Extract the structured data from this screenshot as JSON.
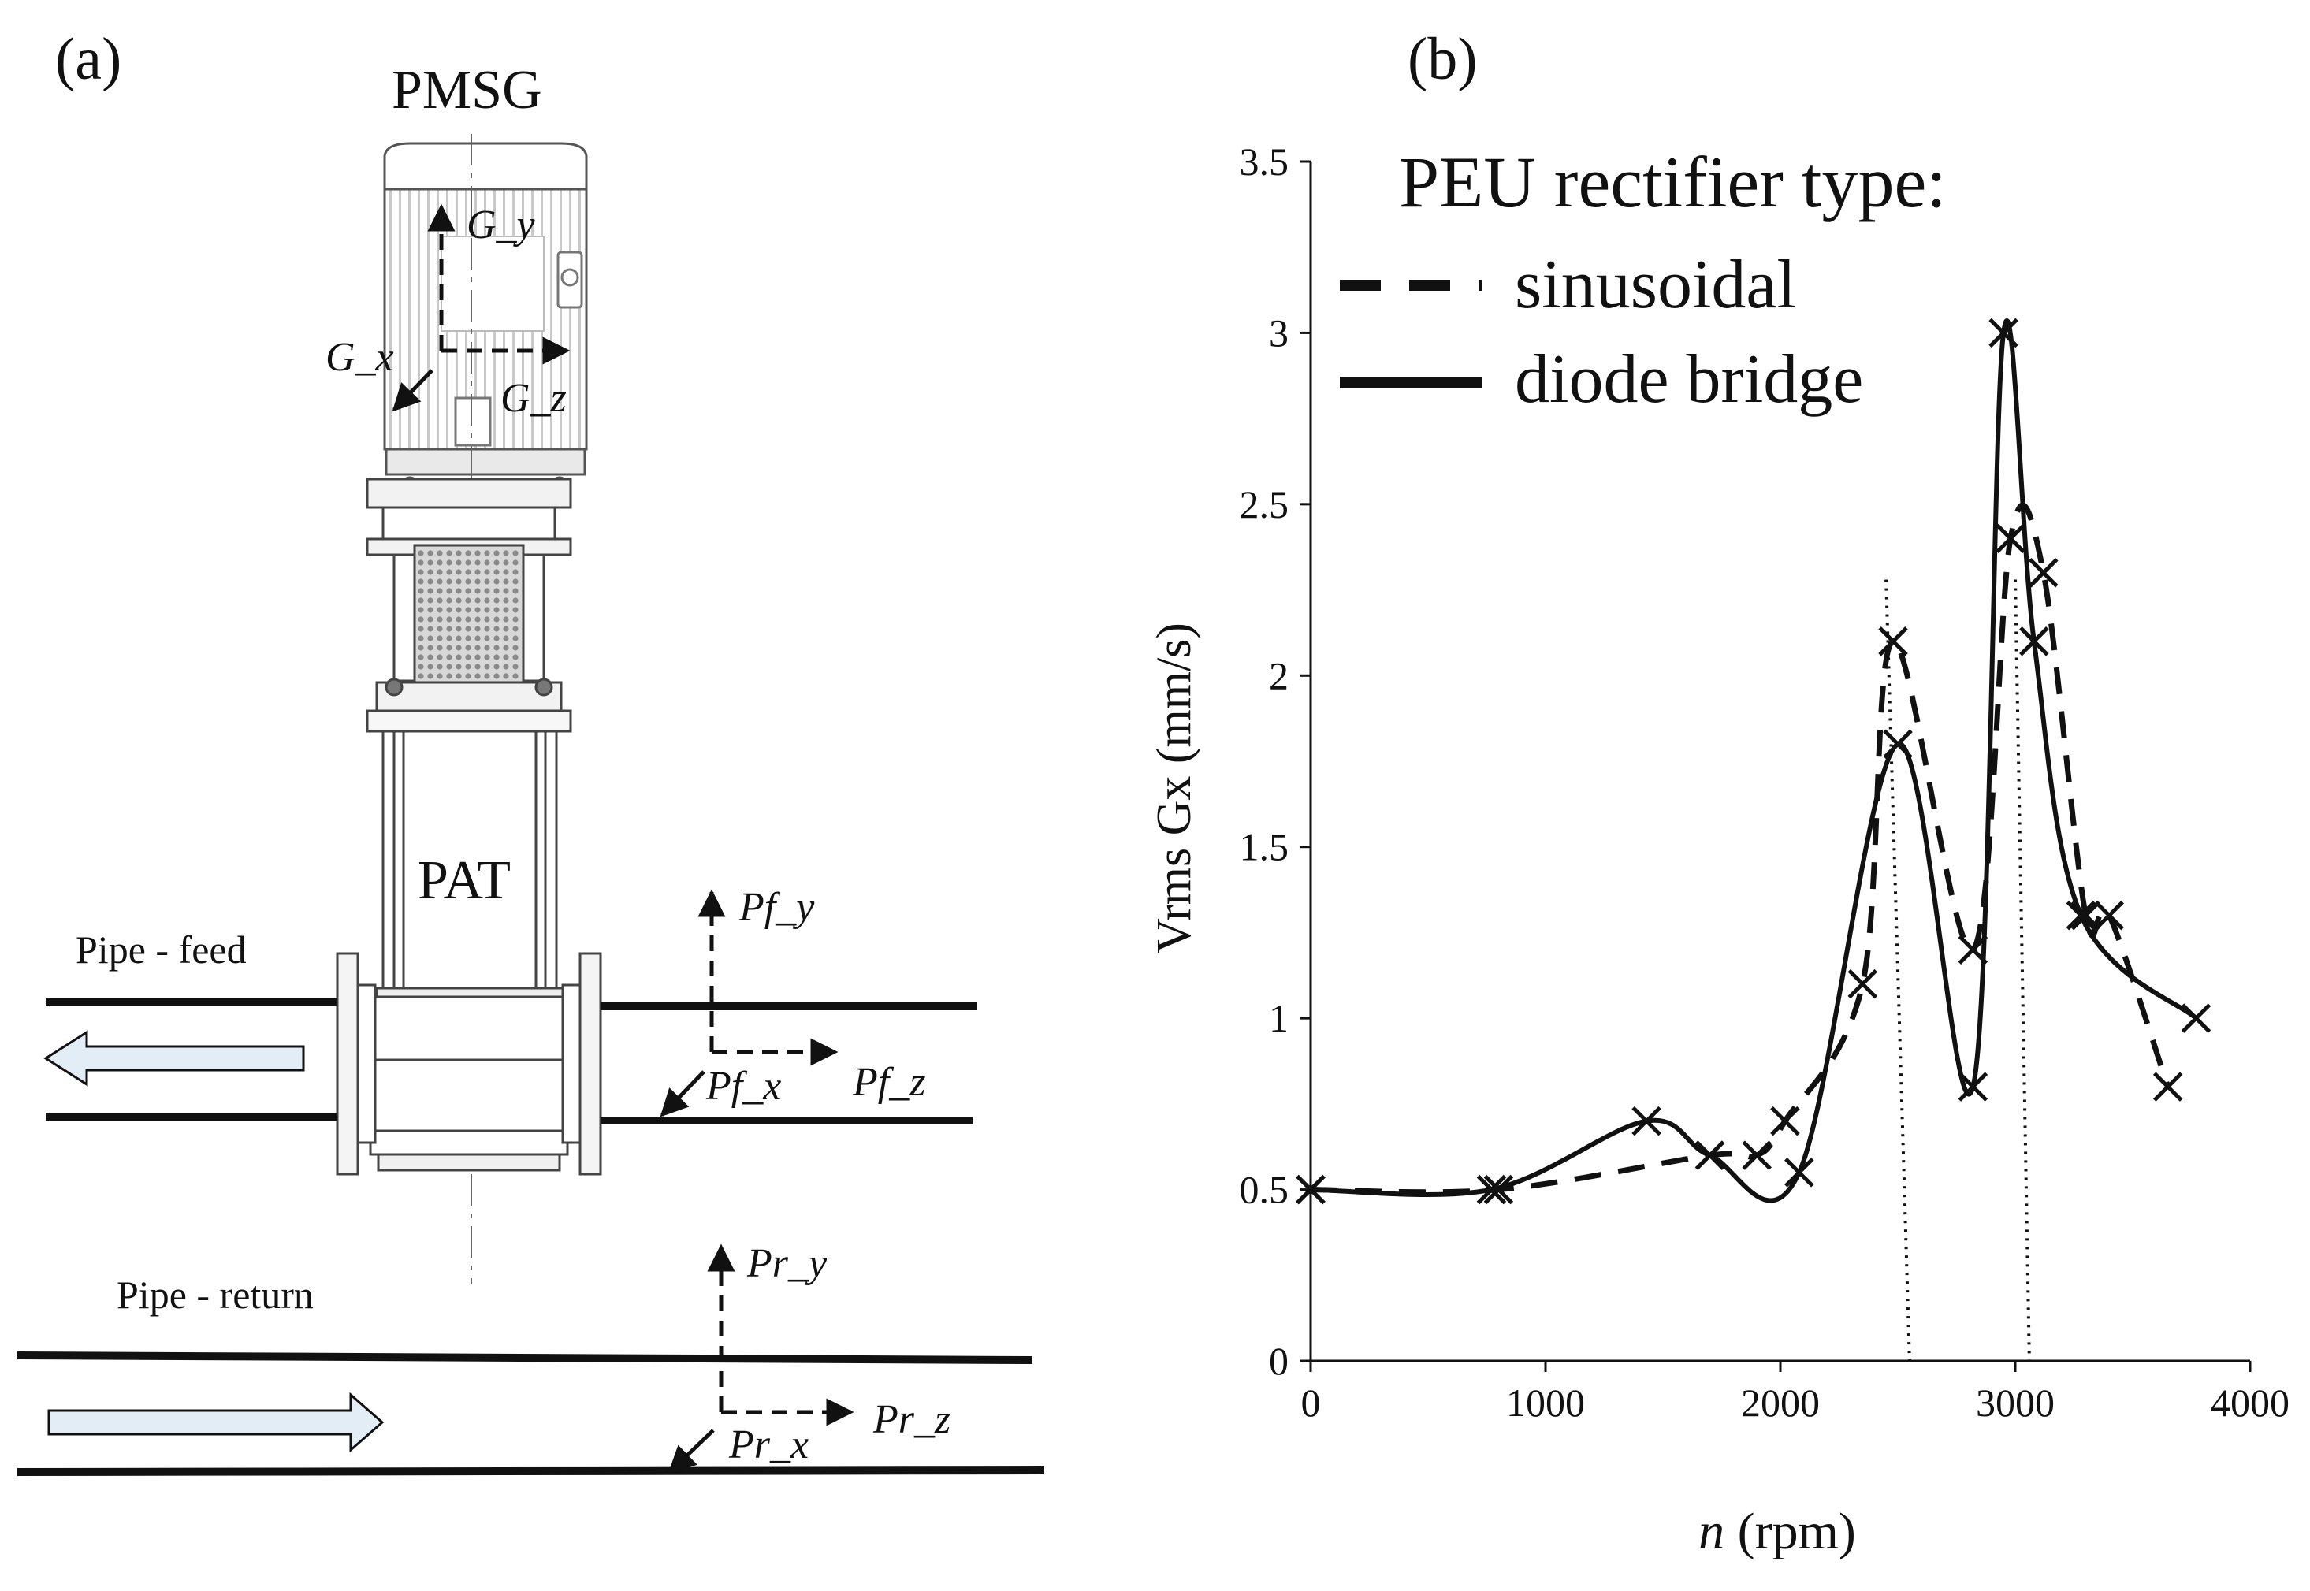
{
  "panel_a": {
    "panel_label": "(a)",
    "generator_label": "PMSG",
    "turbine_label": "PAT",
    "pipe_feed_label": "Pipe - feed",
    "pipe_return_label": "Pipe - return",
    "axes": {
      "g_y": "G_y",
      "g_x": "G_x",
      "g_z": "G_z",
      "pf_y": "Pf_y",
      "pf_x": "Pf_x",
      "pf_z": "Pf_z",
      "pr_y": "Pr_y",
      "pr_x": "Pr_x",
      "pr_z": "Pr_z"
    },
    "colors": {
      "flow_arrow_fill": "#e3edf6",
      "stroke": "#111111"
    }
  },
  "panel_b": {
    "panel_label": "(b)",
    "legend_title": "PEU rectifier type:",
    "legend_items": [
      "sinusoidal",
      "diode bridge"
    ],
    "xlabel_var": "n",
    "xlabel_unit": " (rpm)",
    "ylabel": "Vrms Gx (mm/s)"
  },
  "chart_data": {
    "type": "line",
    "title": "PEU rectifier type:",
    "xlabel": "n (rpm)",
    "ylabel": "Vrms Gx (mm/s)",
    "xlim": [
      0,
      4000
    ],
    "ylim": [
      0,
      3.5
    ],
    "x_ticks": [
      0,
      1000,
      2000,
      3000,
      4000
    ],
    "y_ticks": [
      0,
      0.5,
      1,
      1.5,
      2,
      2.5,
      3,
      3.5
    ],
    "x_tick_labels": [
      "0",
      "1000",
      "2000",
      "3000",
      "4000"
    ],
    "y_tick_labels": [
      "0",
      "0.5",
      "1",
      "1.5",
      "2",
      "2.5",
      "3",
      "3.5"
    ],
    "grid": false,
    "legend_position": "top",
    "vertical_reference_lines": [
      {
        "x_top": 2450,
        "x_bottom": 2550,
        "y_top": 2.28
      },
      {
        "x_top": 3000,
        "x_bottom": 3060,
        "y_top": 2.28
      }
    ],
    "series": [
      {
        "name": "sinusoidal",
        "style": "dashed",
        "x": [
          0,
          800,
          1700,
          1900,
          2020,
          2350,
          2480,
          2820,
          2980,
          3120,
          3300,
          3400,
          3650
        ],
        "y": [
          0.5,
          0.5,
          0.6,
          0.6,
          0.7,
          1.1,
          2.1,
          1.2,
          2.4,
          2.3,
          1.3,
          1.3,
          0.8
        ]
      },
      {
        "name": "diode bridge",
        "style": "solid",
        "x": [
          0,
          770,
          1430,
          1700,
          2080,
          2500,
          2820,
          2950,
          3080,
          3280,
          3770
        ],
        "y": [
          0.5,
          0.5,
          0.7,
          0.6,
          0.55,
          1.8,
          0.8,
          3.0,
          2.1,
          1.3,
          1.0
        ]
      }
    ]
  }
}
